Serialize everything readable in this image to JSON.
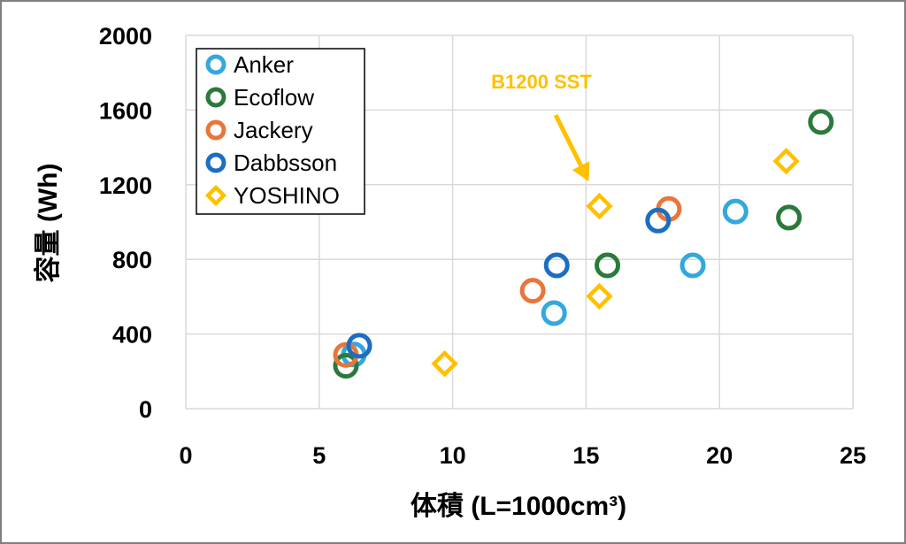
{
  "chart_data": {
    "type": "scatter",
    "xlabel": "体積 (L=1000cm³)",
    "ylabel": "容量 (Wh)",
    "xlim": [
      0,
      25
    ],
    "ylim": [
      0,
      2000
    ],
    "xticks": [
      "0",
      "5",
      "10",
      "15",
      "20",
      "25"
    ],
    "yticks": [
      "0",
      "400",
      "800",
      "1200",
      "1600",
      "2000"
    ],
    "grid": "major gridlines on both axes",
    "legend_position": "top-left",
    "series": [
      {
        "name": "Anker",
        "marker": "circle",
        "color": "#33A8DE",
        "points": [
          [
            6.3,
            290
          ],
          [
            13.8,
            512
          ],
          [
            19.0,
            768
          ],
          [
            20.6,
            1056
          ]
        ]
      },
      {
        "name": "Ecoflow",
        "marker": "circle",
        "color": "#2A7A3B",
        "points": [
          [
            6.0,
            230
          ],
          [
            15.8,
            768
          ],
          [
            22.6,
            1024
          ],
          [
            23.8,
            1536
          ]
        ]
      },
      {
        "name": "Jackery",
        "marker": "circle",
        "color": "#E8763A",
        "points": [
          [
            6.0,
            288
          ],
          [
            13.0,
            632
          ],
          [
            18.1,
            1070
          ]
        ]
      },
      {
        "name": "Dabbsson",
        "marker": "circle",
        "color": "#1B6EC2",
        "points": [
          [
            6.5,
            337
          ],
          [
            13.9,
            768
          ],
          [
            17.7,
            1008
          ]
        ]
      },
      {
        "name": "YOSHINO",
        "marker": "diamond",
        "color": "#FFC000",
        "points": [
          [
            9.7,
            241
          ],
          [
            15.5,
            602
          ],
          [
            15.5,
            1085
          ],
          [
            22.5,
            1326
          ]
        ]
      }
    ],
    "annotations": [
      {
        "text": "B1200 SST",
        "color": "#FFC000",
        "points_to": [
          15.5,
          1085
        ]
      }
    ]
  }
}
